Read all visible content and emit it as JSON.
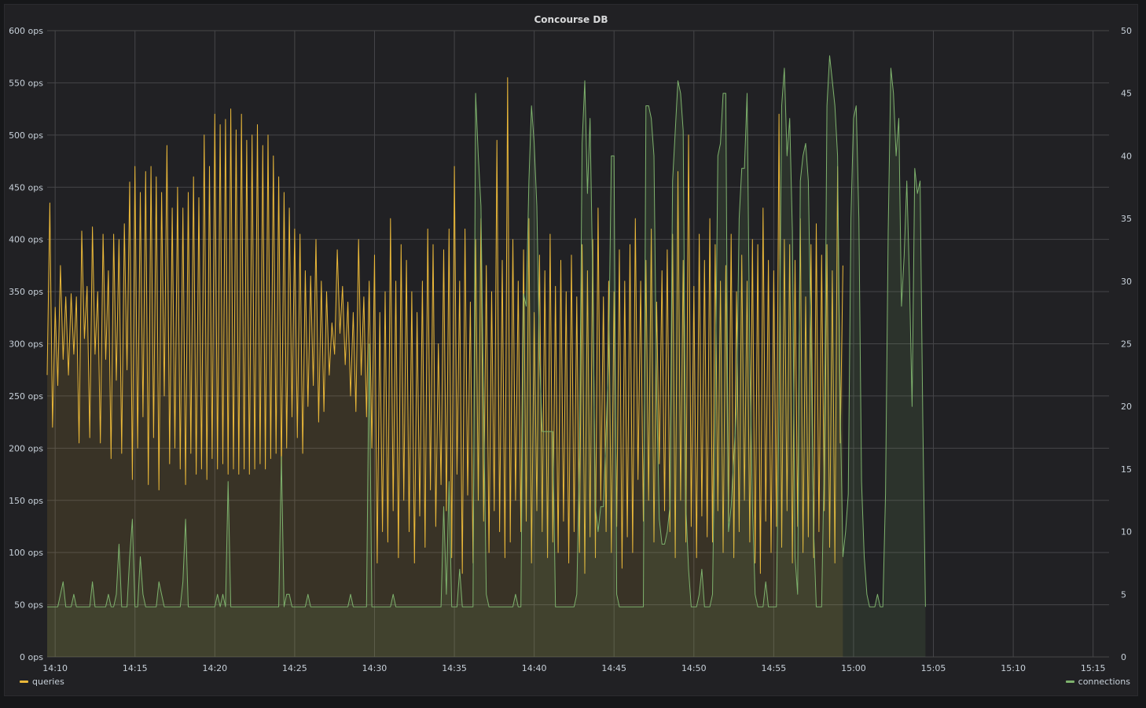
{
  "panel": {
    "title": "Concourse DB"
  },
  "legend": {
    "left_label": "queries",
    "right_label": "connections"
  },
  "colors": {
    "queries": "#eab839",
    "connections": "#7eb26d",
    "grid": "#464649",
    "background": "#212124"
  },
  "chart_data": {
    "type": "line",
    "title": "Concourse DB",
    "x_range": [
      "14:09:30",
      "15:16:00"
    ],
    "x_ticks": [
      "14:10",
      "14:15",
      "14:20",
      "14:25",
      "14:30",
      "14:35",
      "14:40",
      "14:45",
      "14:50",
      "14:55",
      "15:00",
      "15:05",
      "15:10",
      "15:15"
    ],
    "y_left": {
      "ticks": [
        "0 ops",
        "50 ops",
        "100 ops",
        "150 ops",
        "200 ops",
        "250 ops",
        "300 ops",
        "350 ops",
        "400 ops",
        "450 ops",
        "500 ops",
        "550 ops",
        "600 ops"
      ],
      "range": [
        0,
        600
      ],
      "unit": "ops"
    },
    "y_right": {
      "ticks": [
        "0",
        "5",
        "10",
        "15",
        "20",
        "25",
        "30",
        "35",
        "40",
        "45",
        "50"
      ],
      "range": [
        0,
        50
      ]
    },
    "grid": true,
    "legend_position": "bottom",
    "series": [
      {
        "name": "queries",
        "axis": "left",
        "fill": true,
        "x_start": "14:09:30",
        "step_seconds": 10,
        "values": [
          270,
          435,
          220,
          335,
          260,
          375,
          285,
          345,
          270,
          348,
          290,
          345,
          205,
          408,
          305,
          355,
          210,
          412,
          290,
          350,
          205,
          405,
          285,
          370,
          190,
          405,
          265,
          400,
          195,
          415,
          275,
          455,
          170,
          470,
          200,
          445,
          230,
          465,
          165,
          470,
          210,
          460,
          160,
          445,
          250,
          490,
          185,
          430,
          200,
          450,
          180,
          430,
          165,
          445,
          195,
          460,
          175,
          440,
          180,
          500,
          170,
          470,
          190,
          520,
          180,
          510,
          185,
          515,
          175,
          525,
          180,
          505,
          175,
          520,
          180,
          495,
          175,
          500,
          180,
          510,
          185,
          490,
          180,
          500,
          190,
          480,
          195,
          460,
          175,
          445,
          200,
          430,
          230,
          410,
          210,
          405,
          195,
          370,
          240,
          365,
          260,
          400,
          225,
          360,
          235,
          350,
          270,
          320,
          290,
          390,
          310,
          355,
          280,
          340,
          250,
          330,
          235,
          400,
          270,
          345,
          230,
          360,
          200,
          385,
          90,
          330,
          120,
          350,
          110,
          420,
          140,
          360,
          95,
          395,
          150,
          380,
          120,
          350,
          90,
          330,
          135,
          360,
          105,
          410,
          160,
          395,
          125,
          300,
          165,
          390,
          140,
          410,
          95,
          470,
          175,
          360,
          80,
          410,
          155,
          340,
          90,
          400,
          150,
          420,
          130,
          375,
          100,
          350,
          140,
          495,
          120,
          380,
          95,
          555,
          110,
          400,
          150,
          360,
          120,
          390,
          130,
          420,
          90,
          330,
          140,
          385,
          120,
          370,
          95,
          405,
          110,
          355,
          100,
          380,
          130,
          350,
          90,
          385,
          120,
          345,
          100,
          395,
          80,
          370,
          115,
          400,
          95,
          430,
          150,
          345,
          120,
          360,
          100,
          350,
          125,
          390,
          85,
          360,
          115,
          395,
          100,
          420,
          170,
          360,
          130,
          380,
          150,
          410,
          110,
          340,
          185,
          370,
          140,
          390,
          120,
          405,
          95,
          465,
          150,
          380,
          110,
          500,
          125,
          355,
          95,
          405,
          135,
          380,
          115,
          420,
          110,
          395,
          140,
          360,
          100,
          375,
          130,
          405,
          95,
          350,
          120,
          385,
          150,
          360,
          110,
          400,
          90,
          395,
          80,
          430,
          130,
          380,
          100,
          370,
          125,
          520,
          105,
          400,
          140,
          395,
          90,
          380,
          125,
          420,
          100,
          345,
          115,
          395,
          95,
          415,
          120,
          385,
          140,
          395,
          105,
          370,
          90,
          470,
          205,
          375
        ]
      },
      {
        "name": "connections",
        "axis": "right",
        "fill": true,
        "x_start": "14:09:30",
        "step_seconds": 10,
        "values": [
          4,
          4,
          4,
          4,
          4,
          5,
          6,
          4,
          4,
          4,
          5,
          4,
          4,
          4,
          4,
          4,
          4,
          6,
          4,
          4,
          4,
          4,
          4,
          5,
          4,
          4,
          5,
          9,
          4,
          4,
          4,
          8,
          11,
          4,
          4,
          8,
          5,
          4,
          4,
          4,
          4,
          4,
          6,
          5,
          4,
          4,
          4,
          4,
          4,
          4,
          4,
          6,
          11,
          4,
          4,
          4,
          4,
          4,
          4,
          4,
          4,
          4,
          4,
          4,
          5,
          4,
          5,
          4,
          14,
          4,
          4,
          4,
          4,
          4,
          4,
          4,
          4,
          4,
          4,
          4,
          4,
          4,
          4,
          4,
          4,
          4,
          4,
          4,
          16,
          4,
          5,
          5,
          4,
          4,
          4,
          4,
          4,
          4,
          5,
          4,
          4,
          4,
          4,
          4,
          4,
          4,
          4,
          4,
          4,
          4,
          4,
          4,
          4,
          4,
          5,
          4,
          4,
          4,
          4,
          4,
          4,
          25,
          4,
          4,
          4,
          4,
          4,
          4,
          4,
          4,
          5,
          4,
          4,
          4,
          4,
          4,
          4,
          4,
          4,
          4,
          4,
          4,
          4,
          4,
          4,
          4,
          4,
          4,
          4,
          12,
          5,
          14,
          4,
          4,
          4,
          7,
          4,
          4,
          4,
          4,
          4,
          45,
          40,
          36,
          20,
          5,
          4,
          4,
          4,
          4,
          4,
          4,
          4,
          4,
          4,
          4,
          5,
          4,
          4,
          29,
          28,
          38,
          44,
          41,
          36,
          24,
          18,
          18,
          18,
          18,
          18,
          4,
          4,
          4,
          4,
          4,
          4,
          4,
          4,
          5,
          16,
          41,
          46,
          37,
          43,
          30,
          12,
          10,
          12,
          12,
          18,
          24,
          40,
          40,
          5,
          4,
          4,
          4,
          4,
          4,
          4,
          4,
          4,
          4,
          4,
          44,
          44,
          43,
          40,
          21,
          11,
          9,
          9,
          10,
          12,
          38,
          42,
          46,
          45,
          42,
          12,
          7,
          4,
          4,
          4,
          5,
          7,
          4,
          4,
          4,
          5,
          20,
          40,
          41,
          45,
          45,
          10,
          12,
          16,
          20,
          35,
          39,
          39,
          45,
          24,
          12,
          5,
          4,
          4,
          4,
          6,
          4,
          4,
          4,
          4,
          20,
          44,
          47,
          40,
          43,
          34,
          8,
          5,
          38,
          40,
          41,
          38,
          25,
          10,
          4,
          4,
          4,
          16,
          44,
          48,
          46,
          44,
          40,
          20,
          8,
          10,
          13,
          35,
          43,
          44,
          35,
          14,
          8,
          5,
          4,
          4,
          4,
          5,
          4,
          4,
          13,
          34,
          47,
          45,
          40,
          43,
          28,
          32,
          38,
          30,
          20,
          39,
          37,
          38,
          19,
          4
        ]
      }
    ]
  }
}
